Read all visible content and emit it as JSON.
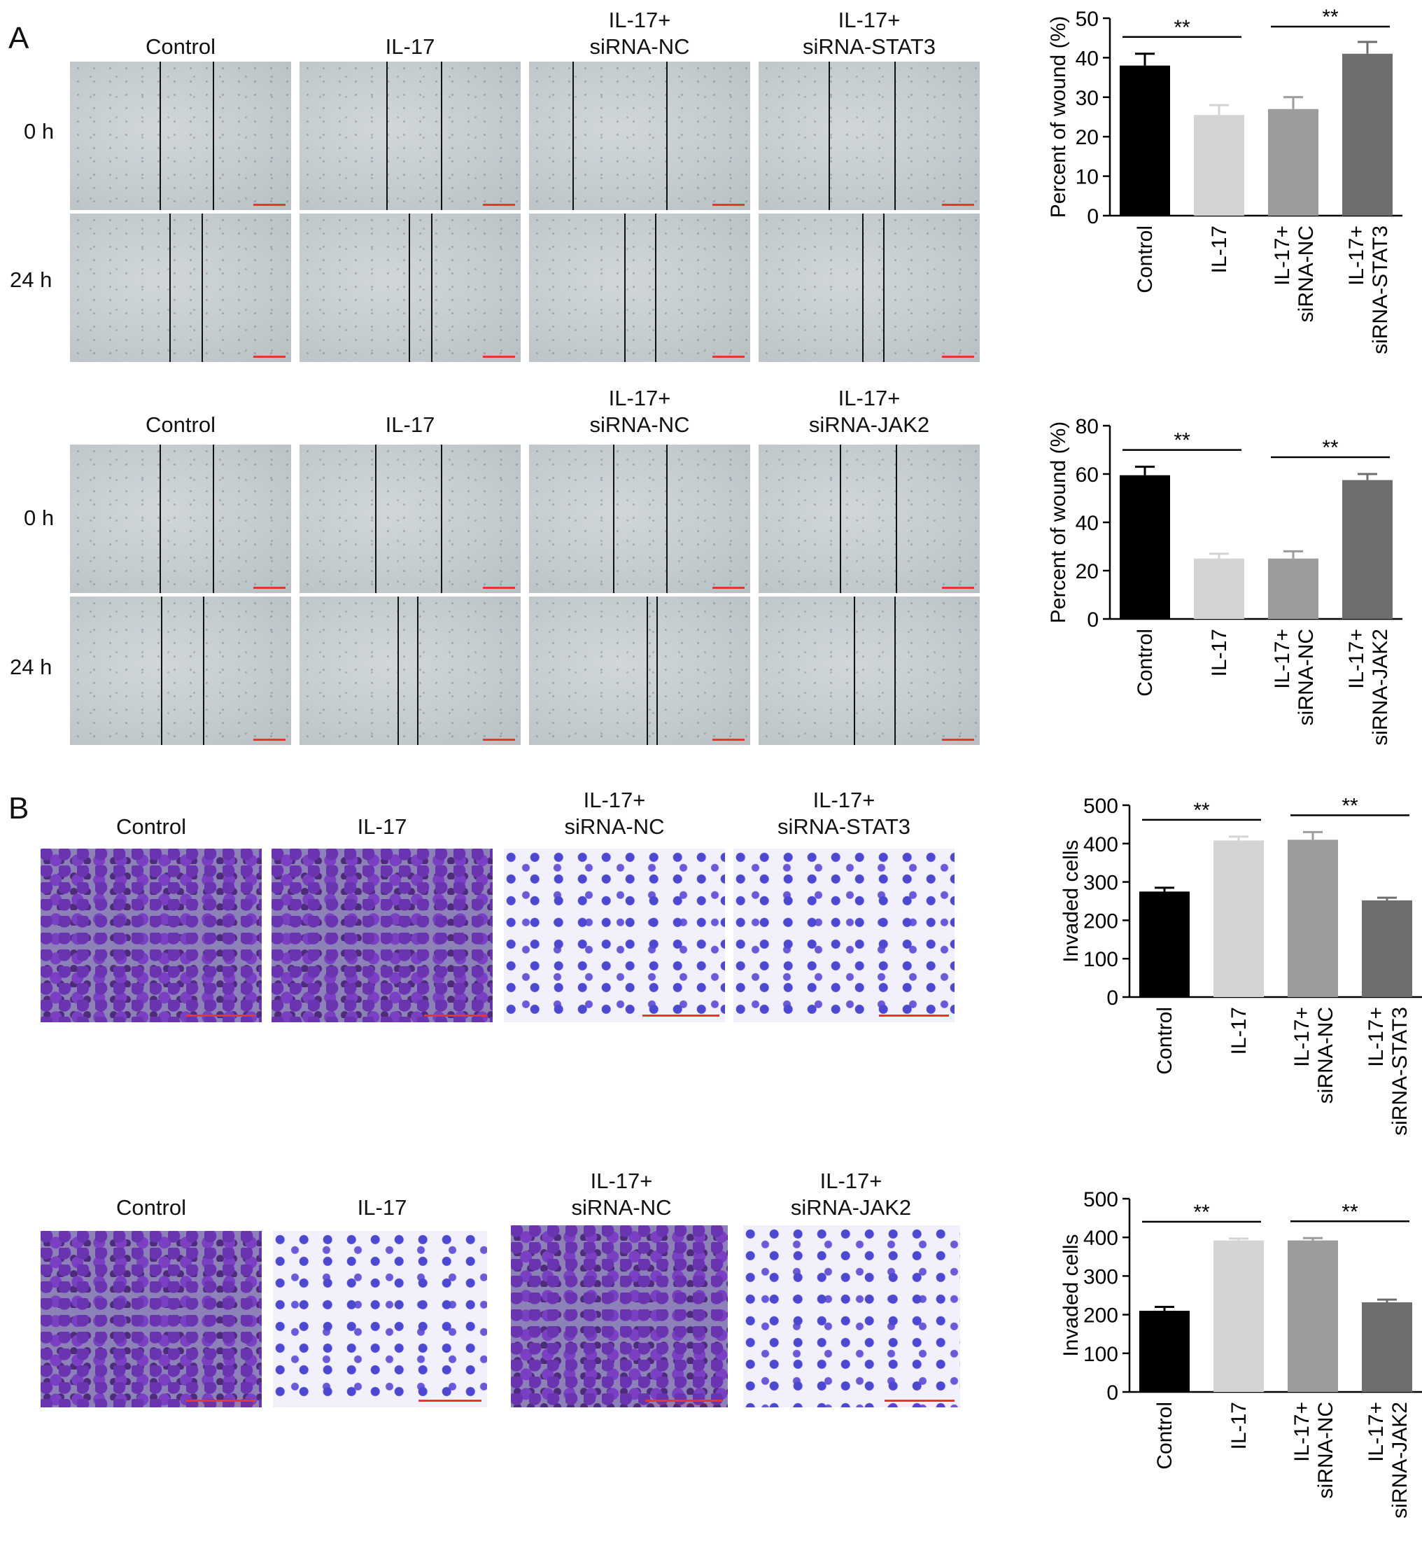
{
  "panel_letters": {
    "a": "A",
    "b": "B"
  },
  "scale_bar_color": "#e8362f",
  "panel_a": {
    "stat3_cols": [
      "Control",
      "IL-17",
      "IL-17+\nsiRNA-NC",
      "IL-17+\nsiRNA-STAT3"
    ],
    "jak2_cols": [
      "Control",
      "IL-17",
      "IL-17+\nsiRNA-NC",
      "IL-17+\nsiRNA-JAK2"
    ],
    "rows": [
      "0 h",
      "24 h"
    ]
  },
  "panel_b": {
    "stat3_cols": [
      "Control",
      "IL-17",
      "IL-17+\nsiRNA-NC",
      "IL-17+\nsiRNA-STAT3"
    ],
    "jak2_cols": [
      "Control",
      "IL-17",
      "IL-17+\nsiRNA-NC",
      "IL-17+\nsiRNA-JAK2"
    ]
  },
  "chart_data": [
    {
      "type": "bar",
      "ylabel": "Percent of wound (%)",
      "categories": [
        "Control",
        "IL-17",
        "IL-17+\nsiRNA-NC",
        "IL-17+\nsiRNA-STAT3"
      ],
      "values": [
        38,
        25.5,
        27,
        41
      ],
      "errors": [
        3,
        2.5,
        3,
        3
      ],
      "ylim": [
        0,
        50
      ],
      "yticks": [
        0,
        10,
        20,
        30,
        40,
        50
      ],
      "colors": [
        "#000000",
        "#d4d4d4",
        "#9c9c9c",
        "#6e6e6e"
      ],
      "significance": [
        {
          "from": 0,
          "to": 1,
          "label": "**"
        },
        {
          "from": 2,
          "to": 3,
          "label": "**"
        }
      ]
    },
    {
      "type": "bar",
      "ylabel": "Percent of wound (%)",
      "categories": [
        "Control",
        "IL-17",
        "IL-17+\nsiRNA-NC",
        "IL-17+\nsiRNA-JAK2"
      ],
      "values": [
        59.5,
        25,
        25,
        57.5
      ],
      "errors": [
        3.5,
        2,
        3,
        2.5
      ],
      "ylim": [
        0,
        80
      ],
      "yticks": [
        0,
        20,
        40,
        60,
        80
      ],
      "colors": [
        "#000000",
        "#d4d4d4",
        "#9c9c9c",
        "#6e6e6e"
      ],
      "significance": [
        {
          "from": 0,
          "to": 1,
          "label": "**"
        },
        {
          "from": 2,
          "to": 3,
          "label": "**"
        }
      ]
    },
    {
      "type": "bar",
      "ylabel": "Invaded cells",
      "categories": [
        "Control",
        "IL-17",
        "IL-17+\nsiRNA-NC",
        "IL-17+\nsiRNA-STAT3"
      ],
      "values": [
        275,
        408,
        410,
        252
      ],
      "errors": [
        10,
        10,
        20,
        7
      ],
      "ylim": [
        0,
        500
      ],
      "yticks": [
        0,
        100,
        200,
        300,
        400,
        500
      ],
      "colors": [
        "#000000",
        "#d4d4d4",
        "#9c9c9c",
        "#6e6e6e"
      ],
      "significance": [
        {
          "from": 0,
          "to": 1,
          "label": "**"
        },
        {
          "from": 2,
          "to": 3,
          "label": "**"
        }
      ]
    },
    {
      "type": "bar",
      "ylabel": "Invaded cells",
      "categories": [
        "Control",
        "IL-17",
        "IL-17+\nsiRNA-NC",
        "IL-17+\nsiRNA-JAK2"
      ],
      "values": [
        210,
        392,
        392,
        232
      ],
      "errors": [
        10,
        5,
        6,
        7
      ],
      "ylim": [
        0,
        500
      ],
      "yticks": [
        0,
        100,
        200,
        300,
        400,
        500
      ],
      "colors": [
        "#000000",
        "#d4d4d4",
        "#9c9c9c",
        "#6e6e6e"
      ],
      "significance": [
        {
          "from": 0,
          "to": 1,
          "label": "**"
        },
        {
          "from": 2,
          "to": 3,
          "label": "**"
        }
      ]
    }
  ]
}
